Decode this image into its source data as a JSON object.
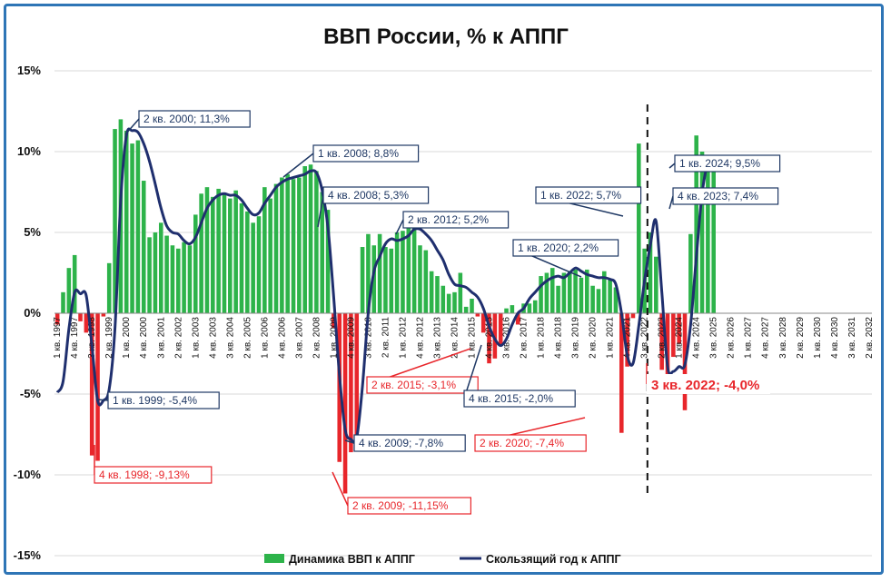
{
  "chart_data": {
    "type": "bar",
    "title": "ВВП России, % к АППГ",
    "ylim": [
      -15,
      15
    ],
    "yticks": [
      "15%",
      "10%",
      "5%",
      "0%",
      "-5%",
      "-10%",
      "-15%"
    ],
    "grid": true,
    "legend_position": "bottom",
    "x_labels": [
      "1 кв. 1997",
      "4 кв. 1997",
      "3 кв. 1998",
      "2 кв. 1999",
      "1 кв. 2000",
      "4 кв. 2000",
      "3 кв. 2001",
      "2 кв. 2002",
      "1 кв. 2003",
      "4 кв. 2003",
      "3 кв. 2004",
      "2 кв. 2005",
      "1 кв. 2006",
      "4 кв. 2006",
      "3 кв. 2007",
      "2 кв. 2008",
      "1 кв. 2009",
      "4 кв. 2009",
      "3 кв. 2010",
      "2 кв. 2011",
      "1 кв. 2012",
      "4 кв. 2012",
      "3 кв. 2013",
      "2 кв. 2014",
      "1 кв. 2015",
      "4 кв. 2015",
      "3 кв. 2016",
      "2 кв. 2017",
      "1 кв. 2018",
      "4 кв. 2018",
      "3 кв. 2019",
      "2 кв. 2020",
      "1 кв. 2021",
      "4 кв. 2021",
      "3 кв. 2022",
      "2 кв. 2023",
      "1 кв. 2024",
      "4 кв. 2024",
      "3 кв. 2025",
      "2 кв. 2026",
      "1 кв. 2027",
      "4 кв. 2027",
      "3 кв. 2028",
      "2 кв. 2029",
      "1 кв. 2030",
      "4 кв. 2030",
      "3 кв. 2031",
      "2 кв. 2032"
    ],
    "series": [
      {
        "name": "Динамика ВВП к АППГ",
        "color": "#2db34a",
        "neg_color": "#e8262b",
        "values": [
          -0.7,
          1.3,
          2.8,
          3.6,
          -0.5,
          -1.2,
          -8.8,
          -9.13,
          -0.2,
          3.1,
          11.4,
          12.0,
          11.3,
          10.5,
          10.7,
          8.2,
          4.7,
          5.0,
          5.6,
          4.8,
          4.2,
          4.0,
          4.4,
          4.2,
          6.1,
          7.4,
          7.8,
          7.2,
          7.7,
          7.4,
          7.1,
          7.6,
          6.8,
          6.3,
          5.6,
          6.0,
          7.8,
          7.1,
          8.0,
          8.4,
          8.6,
          8.3,
          8.4,
          9.1,
          9.2,
          8.8,
          7.5,
          6.4,
          -0.9,
          -9.2,
          -11.15,
          -8.6,
          -7.8,
          4.1,
          4.9,
          4.2,
          4.9,
          4.1,
          4.0,
          5.0,
          5.1,
          5.4,
          5.6,
          4.2,
          3.9,
          2.6,
          2.3,
          1.7,
          1.2,
          1.3,
          2.5,
          0.4,
          0.9,
          -0.2,
          -1.2,
          -3.1,
          -2.8,
          -2.0,
          0.3,
          0.5,
          -0.7,
          0.6,
          0.6,
          0.8,
          2.3,
          2.5,
          2.8,
          1.7,
          2.5,
          2.6,
          2.7,
          2.2,
          2.7,
          1.7,
          1.5,
          2.6,
          2.1,
          1.6,
          -7.4,
          -3.3,
          -0.3,
          10.5,
          4.0,
          5.0,
          3.5,
          -3.5,
          -4.0,
          -2.7,
          -1.9,
          -6.0,
          4.9,
          11.0,
          10.0,
          9.0,
          9.5
        ]
      },
      {
        "name": "Скользящий год к АППГ",
        "color": "#1f2f6e",
        "values": [
          -4.9,
          -4.2,
          -1.0,
          1.3,
          1.2,
          1.1,
          -2.0,
          -5.4,
          -5.4,
          -4.7,
          -1.0,
          7.0,
          11.0,
          11.3,
          11.2,
          10.5,
          9.4,
          8.0,
          6.5,
          5.4,
          5.0,
          4.9,
          4.5,
          4.3,
          4.7,
          5.6,
          6.5,
          7.0,
          7.3,
          7.4,
          7.3,
          7.3,
          7.0,
          6.5,
          6.1,
          6.2,
          6.8,
          7.3,
          7.8,
          8.1,
          8.3,
          8.4,
          8.5,
          8.6,
          8.8,
          8.7,
          7.6,
          5.3,
          1.0,
          -3.8,
          -7.2,
          -7.8,
          -7.7,
          -4.5,
          0.0,
          2.6,
          3.5,
          4.3,
          4.6,
          4.5,
          4.6,
          4.8,
          5.2,
          5.2,
          4.9,
          4.5,
          3.9,
          3.3,
          2.4,
          1.8,
          1.7,
          1.6,
          1.3,
          1.0,
          0.3,
          -0.8,
          -1.6,
          -2.0,
          -1.6,
          -0.7,
          0.0,
          0.3,
          0.9,
          1.3,
          1.7,
          2.0,
          2.2,
          2.3,
          2.2,
          2.5,
          2.8,
          2.6,
          2.4,
          2.3,
          2.2,
          2.2,
          2.1,
          1.8,
          0.0,
          -2.6,
          -3.1,
          -0.8,
          2.0,
          4.2,
          5.7,
          1.3,
          -3.3,
          -3.6,
          -3.3,
          -3.2,
          -0.7,
          3.5,
          7.4,
          9.5
        ]
      }
    ],
    "annotations": [
      {
        "text": "2 кв. 2000; 11,3%",
        "color": "blue"
      },
      {
        "text": "1 кв. 2008; 8,8%",
        "color": "blue"
      },
      {
        "text": "4 кв. 2008; 5,3%",
        "color": "blue"
      },
      {
        "text": "2 кв. 2012; 5,2%",
        "color": "blue"
      },
      {
        "text": "1 кв. 2022; 5,7%",
        "color": "blue"
      },
      {
        "text": "1 кв. 2020; 2,2%",
        "color": "blue"
      },
      {
        "text": "1 кв. 2024; 9,5%",
        "color": "blue"
      },
      {
        "text": "4 кв. 2023; 7,4%",
        "color": "blue"
      },
      {
        "text": "1 кв. 1999; -5,4%",
        "color": "blue"
      },
      {
        "text": "4 кв. 1998; -9,13%",
        "color": "red"
      },
      {
        "text": "4 кв. 2009; -7,8%",
        "color": "blue"
      },
      {
        "text": "2 кв. 2009; -11,15%",
        "color": "red"
      },
      {
        "text": "2 кв. 2015; -3,1%",
        "color": "red"
      },
      {
        "text": "4 кв. 2015; -2,0%",
        "color": "blue"
      },
      {
        "text": "2 кв. 2020; -7,4%",
        "color": "red"
      },
      {
        "text": "3 кв. 2022; -4,0%",
        "color": "red"
      }
    ]
  }
}
